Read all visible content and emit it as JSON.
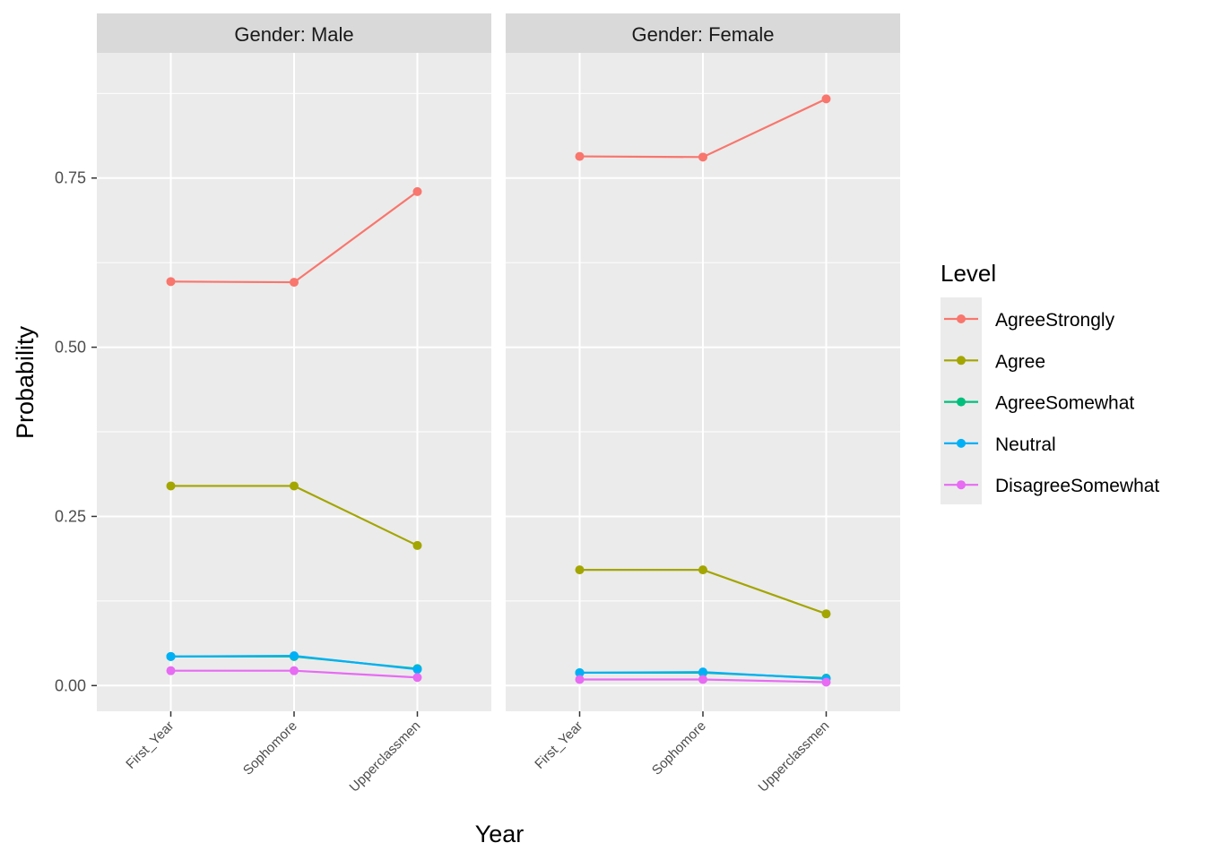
{
  "chart_data": {
    "type": "line",
    "xlabel": "Year",
    "ylabel": "Probability",
    "ylim": [
      -0.038,
      0.935
    ],
    "y_ticks": [
      0,
      0.25,
      0.5,
      0.75
    ],
    "y_tick_labels": [
      "0.00",
      "0.25",
      "0.50",
      "0.75"
    ],
    "categories": [
      "First_Year",
      "Sophomore",
      "Upperclassmen"
    ],
    "grid": true,
    "legend": {
      "title": "Level",
      "placement": "right",
      "entries": [
        "AgreeStrongly",
        "Agree",
        "AgreeSomewhat",
        "Neutral",
        "DisagreeSomewhat"
      ]
    },
    "colors": {
      "AgreeStrongly": "#F8766D",
      "Agree": "#A3A500",
      "AgreeSomewhat": "#00BF7D",
      "Neutral": "#00B0F6",
      "DisagreeSomewhat": "#E76BF3"
    },
    "panels": [
      {
        "label": "Gender: Male",
        "series": [
          {
            "name": "AgreeStrongly",
            "values": [
              0.597,
              0.596,
              0.73
            ]
          },
          {
            "name": "Agree",
            "values": [
              0.295,
              0.295,
              0.207
            ]
          },
          {
            "name": "AgreeSomewhat",
            "values": [
              0.043,
              0.043,
              0.025
            ]
          },
          {
            "name": "Neutral",
            "values": [
              0.043,
              0.044,
              0.024
            ]
          },
          {
            "name": "DisagreeSomewhat",
            "values": [
              0.022,
              0.022,
              0.012
            ]
          }
        ]
      },
      {
        "label": "Gender: Female",
        "series": [
          {
            "name": "AgreeStrongly",
            "values": [
              0.782,
              0.781,
              0.867
            ]
          },
          {
            "name": "Agree",
            "values": [
              0.171,
              0.171,
              0.106
            ]
          },
          {
            "name": "AgreeSomewhat",
            "values": [
              0.019,
              0.019,
              0.011
            ]
          },
          {
            "name": "Neutral",
            "values": [
              0.019,
              0.02,
              0.01
            ]
          },
          {
            "name": "DisagreeSomewhat",
            "values": [
              0.009,
              0.009,
              0.005
            ]
          }
        ]
      }
    ]
  }
}
